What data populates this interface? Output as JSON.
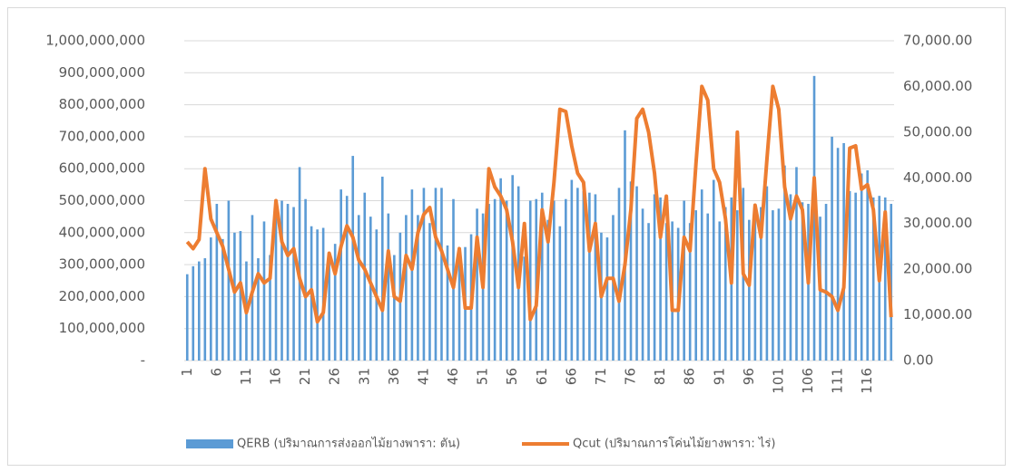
{
  "chart_data": {
    "type": "bar-line",
    "categories": [
      "1",
      null,
      null,
      null,
      null,
      "6",
      null,
      null,
      null,
      null,
      "11",
      null,
      null,
      null,
      null,
      "16",
      null,
      null,
      null,
      null,
      "21",
      null,
      null,
      null,
      null,
      "26",
      null,
      null,
      null,
      null,
      "31",
      null,
      null,
      null,
      null,
      "36",
      null,
      null,
      null,
      null,
      "41",
      null,
      null,
      null,
      null,
      "46",
      null,
      null,
      null,
      null,
      "51",
      null,
      null,
      null,
      null,
      "56",
      null,
      null,
      null,
      null,
      "61",
      null,
      null,
      null,
      null,
      "66",
      null,
      null,
      null,
      null,
      "71",
      null,
      null,
      null,
      null,
      "76",
      null,
      null,
      null,
      null,
      "81",
      null,
      null,
      null,
      null,
      "86",
      null,
      null,
      null,
      null,
      "91",
      null,
      null,
      null,
      null,
      "96",
      null,
      null,
      null,
      null,
      "101",
      null,
      null,
      null,
      null,
      "106",
      null,
      null,
      null,
      null,
      "111",
      null,
      null,
      null,
      null,
      "116",
      null,
      null,
      null,
      null
    ],
    "series": [
      {
        "name": "QERB (ปริมาณการส่งออกไม้ยางพารา: ตัน)",
        "color": "#5b9bd5",
        "kind": "bar",
        "values": [
          270000000,
          295000000,
          310000000,
          320000000,
          385000000,
          490000000,
          380000000,
          500000000,
          400000000,
          405000000,
          310000000,
          455000000,
          320000000,
          435000000,
          330000000,
          460000000,
          500000000,
          490000000,
          480000000,
          605000000,
          505000000,
          420000000,
          410000000,
          415000000,
          330000000,
          365000000,
          535000000,
          515000000,
          640000000,
          455000000,
          525000000,
          450000000,
          410000000,
          575000000,
          460000000,
          330000000,
          400000000,
          455000000,
          535000000,
          455000000,
          540000000,
          430000000,
          540000000,
          540000000,
          360000000,
          505000000,
          315000000,
          355000000,
          395000000,
          475000000,
          460000000,
          490000000,
          505000000,
          570000000,
          500000000,
          580000000,
          545000000,
          325000000,
          500000000,
          505000000,
          525000000,
          440000000,
          500000000,
          420000000,
          505000000,
          565000000,
          540000000,
          530000000,
          525000000,
          520000000,
          400000000,
          385000000,
          455000000,
          540000000,
          720000000,
          560000000,
          545000000,
          475000000,
          430000000,
          520000000,
          510000000,
          430000000,
          435000000,
          415000000,
          500000000,
          430000000,
          470000000,
          535000000,
          460000000,
          565000000,
          435000000,
          480000000,
          510000000,
          470000000,
          540000000,
          440000000,
          455000000,
          480000000,
          545000000,
          470000000,
          475000000,
          610000000,
          520000000,
          605000000,
          495000000,
          490000000,
          890000000,
          450000000,
          490000000,
          700000000,
          665000000,
          680000000,
          530000000,
          525000000,
          585000000,
          595000000,
          510000000,
          515000000,
          510000000,
          490000000
        ]
      },
      {
        "name": "Qcut (ปริมาณการโค่นไม้ยางพารา: ไร่)",
        "color": "#ed7d31",
        "kind": "line",
        "axis": "y2",
        "values": [
          26000,
          24500,
          26500,
          42000,
          31000,
          28000,
          25000,
          20000,
          15000,
          17000,
          10500,
          15000,
          19000,
          17000,
          18000,
          35000,
          26000,
          23000,
          24500,
          18000,
          14000,
          15500,
          8500,
          10500,
          23500,
          19000,
          25000,
          29500,
          27000,
          22000,
          20000,
          17000,
          14000,
          11000,
          24000,
          14000,
          13000,
          23000,
          20000,
          28000,
          32000,
          33500,
          27000,
          24000,
          20000,
          16000,
          24500,
          11500,
          11500,
          27000,
          16000,
          42000,
          38000,
          36000,
          33000,
          26000,
          16000,
          30000,
          9000,
          12000,
          33000,
          26000,
          39000,
          55000,
          54500,
          47000,
          41000,
          39000,
          24000,
          30000,
          14000,
          18000,
          18000,
          13000,
          21000,
          33000,
          53000,
          55000,
          50000,
          41000,
          27000,
          36000,
          11000,
          11000,
          27000,
          24000,
          43000,
          60000,
          57000,
          42000,
          39000,
          31000,
          17000,
          50000,
          19000,
          16500,
          34000,
          27000,
          44000,
          60000,
          55000,
          38000,
          31000,
          36000,
          33000,
          17000,
          40000,
          15500,
          15000,
          14000,
          11000,
          16000,
          46500,
          47000,
          37500,
          38500,
          33000,
          17500,
          32500,
          9500
        ]
      }
    ],
    "ylim": [
      0,
      1000000000
    ],
    "yticks": [
      {
        "value": 0,
        "label": "-"
      },
      {
        "value": 100000000,
        "label": "100,000,000"
      },
      {
        "value": 200000000,
        "label": "200,000,000"
      },
      {
        "value": 300000000,
        "label": "300,000,000"
      },
      {
        "value": 400000000,
        "label": "400,000,000"
      },
      {
        "value": 500000000,
        "label": "500,000,000"
      },
      {
        "value": 600000000,
        "label": "600,000,000"
      },
      {
        "value": 700000000,
        "label": "700,000,000"
      },
      {
        "value": 800000000,
        "label": "800,000,000"
      },
      {
        "value": 900000000,
        "label": "900,000,000"
      },
      {
        "value": 1000000000,
        "label": "1,000,000,000"
      }
    ],
    "y2lim": [
      0,
      70000
    ],
    "y2ticks": [
      {
        "value": 0,
        "label": "0.00"
      },
      {
        "value": 10000,
        "label": "10,000.00"
      },
      {
        "value": 20000,
        "label": "20,000.00"
      },
      {
        "value": 30000,
        "label": "30,000.00"
      },
      {
        "value": 40000,
        "label": "40,000.00"
      },
      {
        "value": 50000,
        "label": "50,000.00"
      },
      {
        "value": 60000,
        "label": "60,000.00"
      },
      {
        "value": 70000,
        "label": "70,000.00"
      }
    ],
    "grid": true,
    "legend": "bottom"
  }
}
